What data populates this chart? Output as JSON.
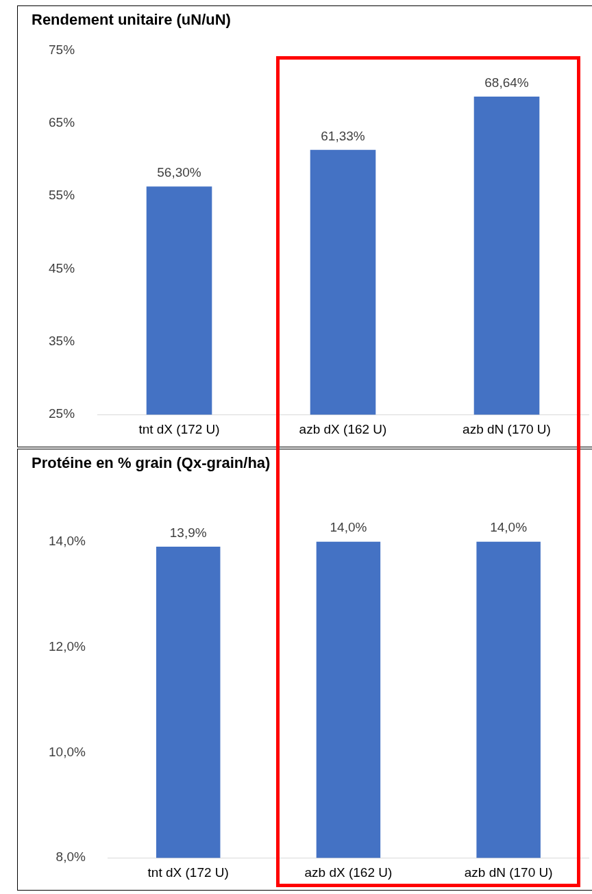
{
  "chart_data": [
    {
      "type": "bar",
      "title": "Rendement unitaire (uN/uN)",
      "categories": [
        "tnt dX (172 U)",
        "azb dX (162 U)",
        "azb dN (170 U)"
      ],
      "values": [
        56.3,
        61.33,
        68.64
      ],
      "value_labels": [
        "56,30%",
        "61,33%",
        "68,64%"
      ],
      "color": "#4472c4",
      "ylim": [
        25,
        75
      ],
      "yticks": [
        {
          "value": 25,
          "label": "25%"
        },
        {
          "value": 35,
          "label": "35%"
        },
        {
          "value": 45,
          "label": "45%"
        },
        {
          "value": 55,
          "label": "55%"
        },
        {
          "value": 65,
          "label": "65%"
        },
        {
          "value": 75,
          "label": "75%"
        }
      ],
      "grid": false,
      "legend": false
    },
    {
      "type": "bar",
      "title": "Protéine en % grain (Qx-grain/ha)",
      "categories": [
        "tnt dX (172 U)",
        "azb dX (162 U)",
        "azb dN (170 U)"
      ],
      "values": [
        13.9,
        14.0,
        14.0
      ],
      "value_labels": [
        "13,9%",
        "14,0%",
        "14,0%"
      ],
      "color": "#4472c4",
      "ylim": [
        8,
        14
      ],
      "yticks": [
        {
          "value": 8,
          "label": "8,0%"
        },
        {
          "value": 10,
          "label": "10,0%"
        },
        {
          "value": 12,
          "label": "12,0%"
        },
        {
          "value": 14,
          "label": "14,0%"
        }
      ],
      "grid": false,
      "legend": false
    }
  ]
}
